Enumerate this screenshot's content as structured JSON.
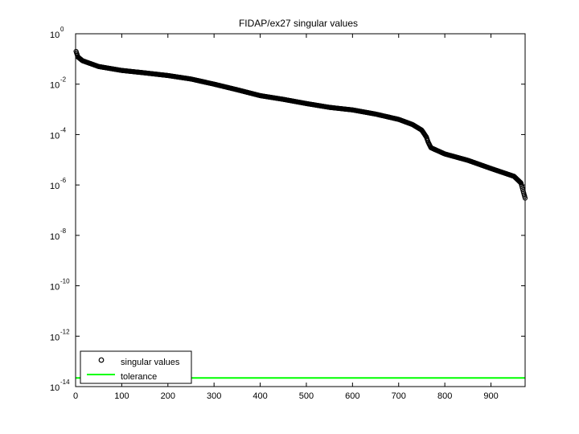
{
  "chart_data": {
    "type": "scatter",
    "title": "FIDAP/ex27 singular values",
    "xlabel": "",
    "ylabel": "",
    "xlim": [
      0,
      974
    ],
    "ylim": [
      1e-14,
      1
    ],
    "yscale": "log",
    "grid": false,
    "xticks": [
      0,
      100,
      200,
      300,
      400,
      500,
      600,
      700,
      800,
      900
    ],
    "xtick_labels": [
      "0",
      "100",
      "200",
      "300",
      "400",
      "500",
      "600",
      "700",
      "800",
      "900"
    ],
    "yticks": [
      {
        "base": "10",
        "exp": "0",
        "value": 1
      },
      {
        "base": "10",
        "exp": "-2",
        "value": 0.01
      },
      {
        "base": "10",
        "exp": "-4",
        "value": 0.0001
      },
      {
        "base": "10",
        "exp": "-6",
        "value": 1e-06
      },
      {
        "base": "10",
        "exp": "-8",
        "value": 1e-08
      },
      {
        "base": "10",
        "exp": "-10",
        "value": 1e-10
      },
      {
        "base": "10",
        "exp": "-12",
        "value": 1e-12
      },
      {
        "base": "10",
        "exp": "-14",
        "value": 1e-14
      }
    ],
    "legend_position": "bottom-left",
    "series": [
      {
        "name": "singular values",
        "marker": "circle",
        "color": "#000000",
        "count": 974,
        "breakpoints": [
          {
            "x": 1,
            "y": 0.2
          },
          {
            "x": 5,
            "y": 0.12
          },
          {
            "x": 15,
            "y": 0.085
          },
          {
            "x": 50,
            "y": 0.05
          },
          {
            "x": 100,
            "y": 0.035
          },
          {
            "x": 150,
            "y": 0.028
          },
          {
            "x": 200,
            "y": 0.022
          },
          {
            "x": 250,
            "y": 0.016
          },
          {
            "x": 300,
            "y": 0.01
          },
          {
            "x": 350,
            "y": 0.006
          },
          {
            "x": 400,
            "y": 0.0035
          },
          {
            "x": 450,
            "y": 0.0025
          },
          {
            "x": 500,
            "y": 0.0017
          },
          {
            "x": 550,
            "y": 0.0012
          },
          {
            "x": 600,
            "y": 0.00095
          },
          {
            "x": 650,
            "y": 0.00065
          },
          {
            "x": 700,
            "y": 0.0004
          },
          {
            "x": 730,
            "y": 0.00025
          },
          {
            "x": 750,
            "y": 0.00015
          },
          {
            "x": 760,
            "y": 8e-05
          },
          {
            "x": 764,
            "y": 5e-05
          },
          {
            "x": 770,
            "y": 3e-05
          },
          {
            "x": 800,
            "y": 1.7e-05
          },
          {
            "x": 850,
            "y": 9.5e-06
          },
          {
            "x": 900,
            "y": 4.5e-06
          },
          {
            "x": 950,
            "y": 2.2e-06
          },
          {
            "x": 965,
            "y": 1.2e-06
          },
          {
            "x": 974,
            "y": 3e-07
          }
        ]
      },
      {
        "name": "tolerance",
        "marker": "line",
        "color": "#00ff00",
        "value": 2.2e-14
      }
    ]
  }
}
